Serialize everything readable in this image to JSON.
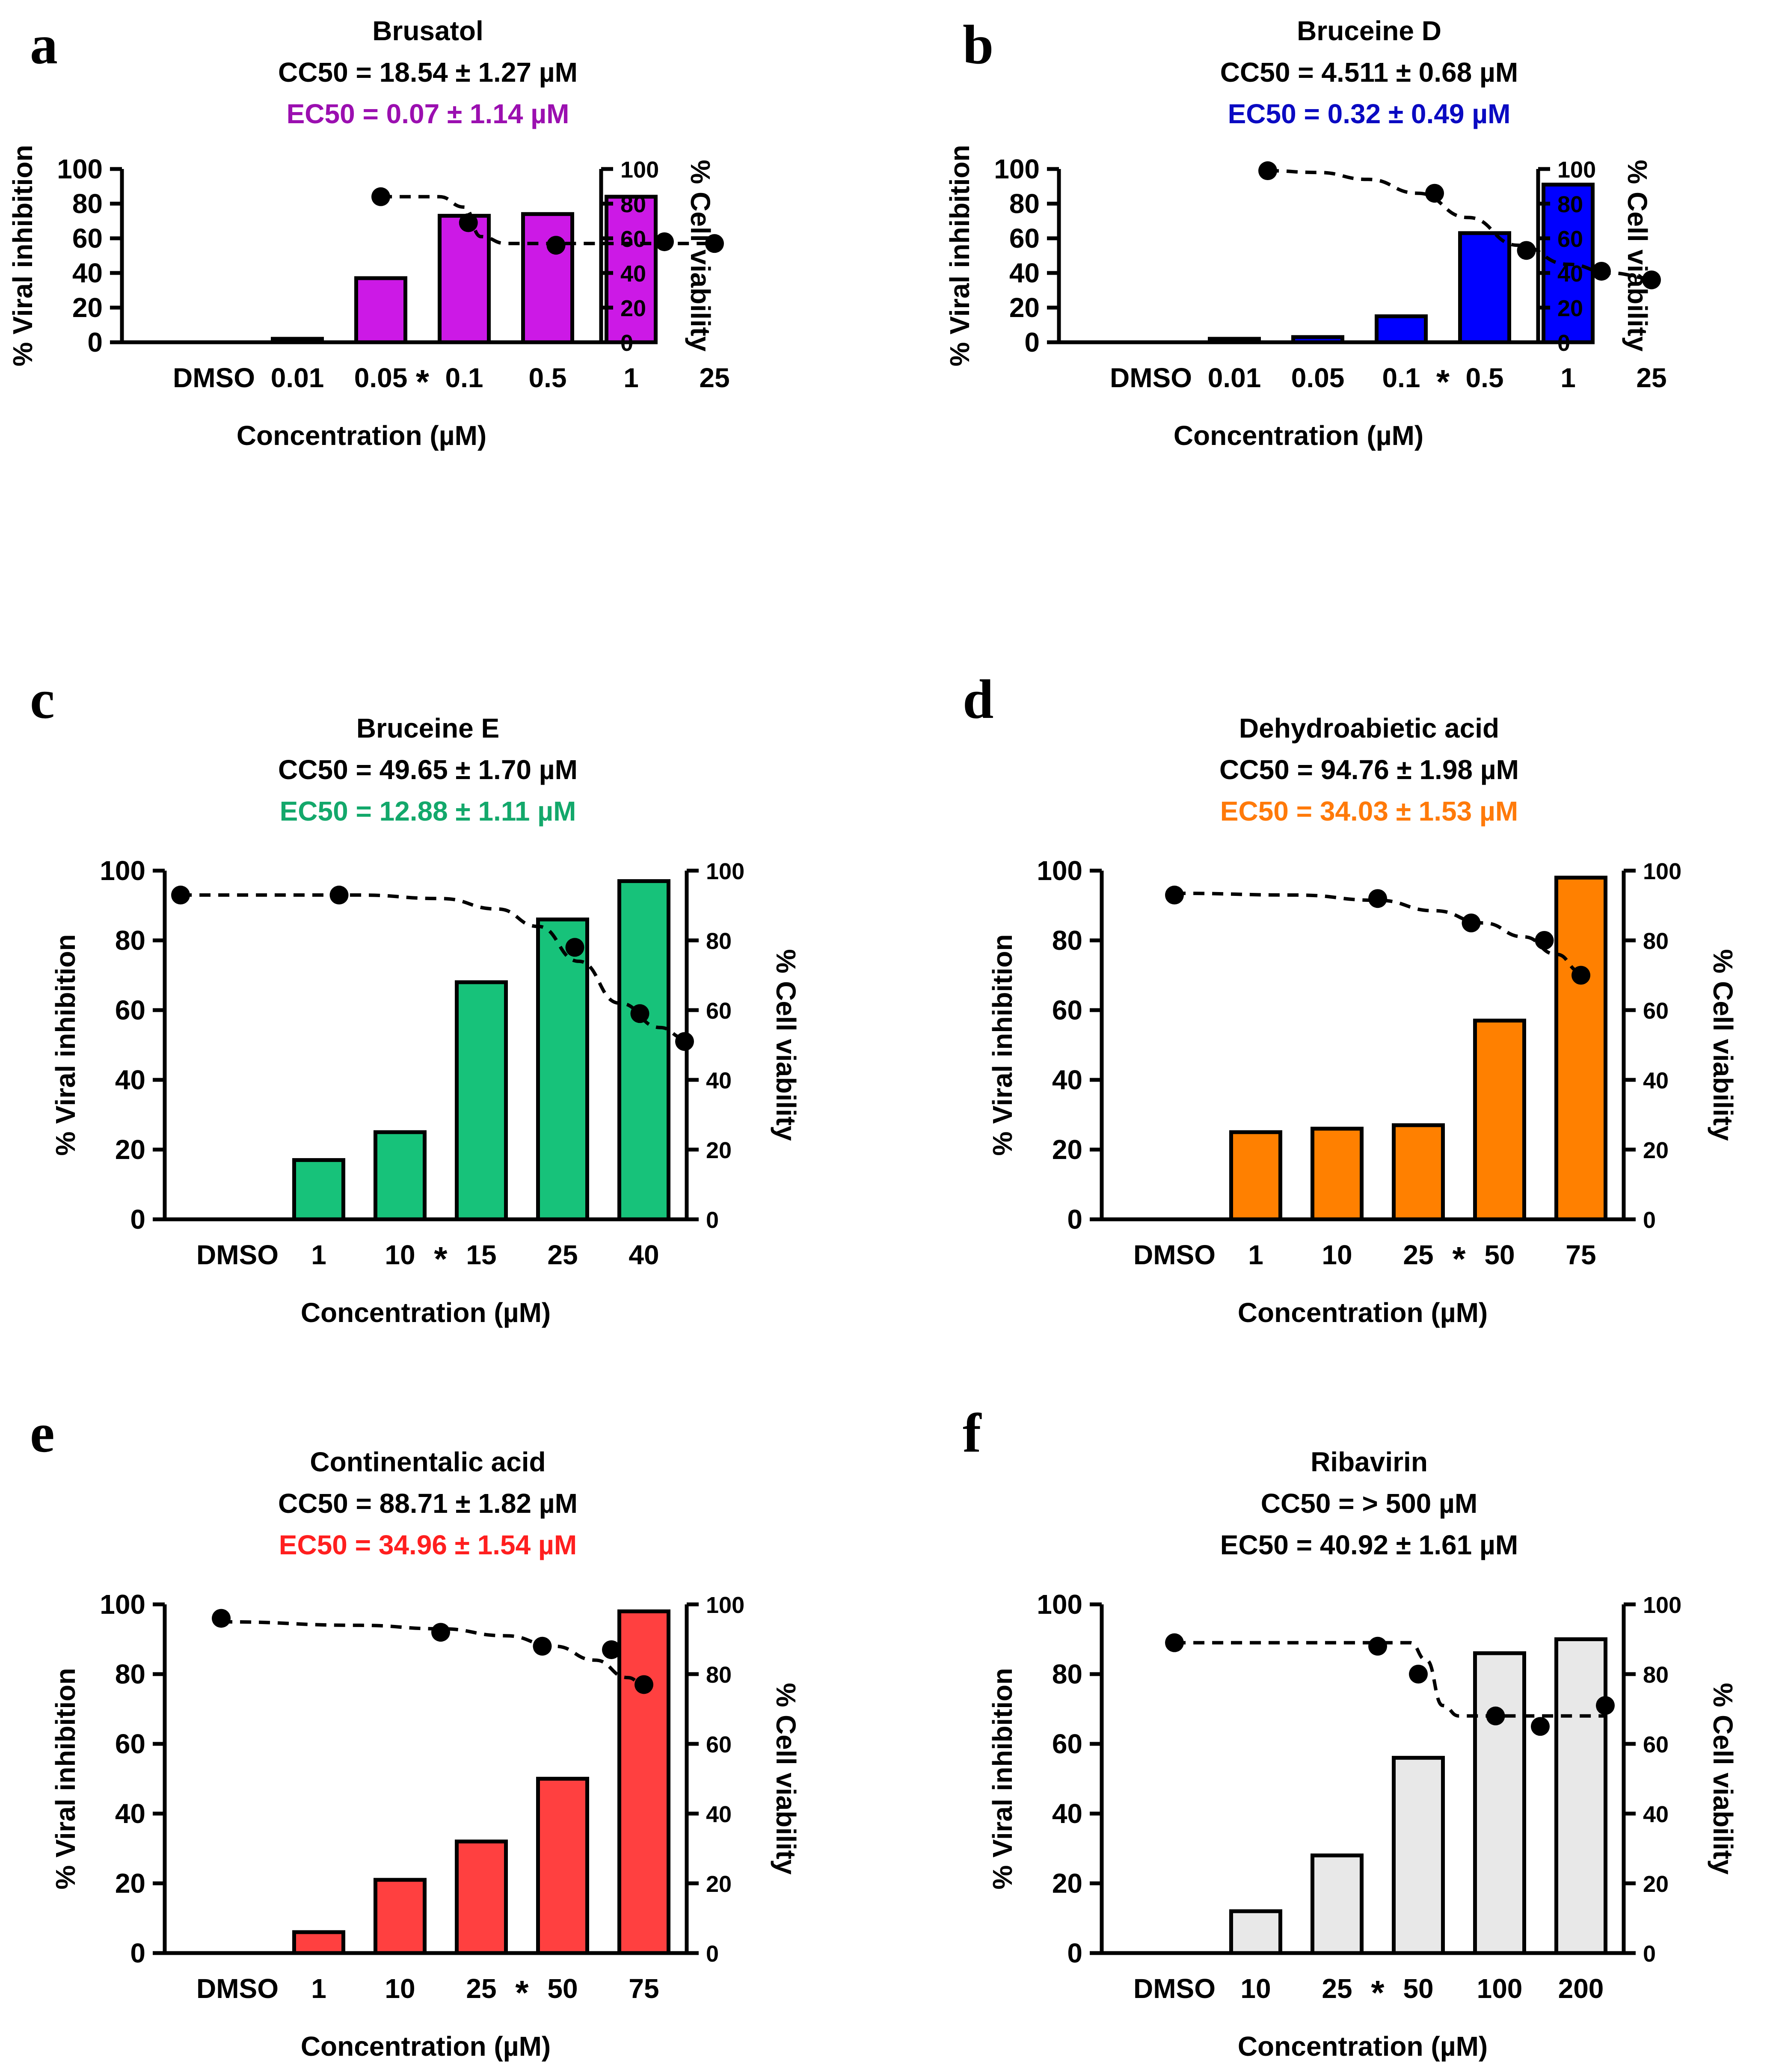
{
  "figure": {
    "background": "#ffffff"
  },
  "chart_data": [
    {
      "panel": "a",
      "type": "bar",
      "title": "Brusatol",
      "cc50": "CC50 = 18.54 ± 1.27 µM",
      "ec50": "EC50 = 0.07 ± 1.14 µM",
      "ec50_color": "#9b0fb0",
      "bar_color": "#cc19e6",
      "bar_edge": "#000000",
      "categories": [
        "DMSO",
        "0.01",
        "0.05",
        "0.1",
        "0.5",
        "1",
        "25"
      ],
      "values": [
        0,
        2,
        37,
        73,
        74,
        84,
        null
      ],
      "marker_after_index": 2,
      "ylabel": "% Viral inhibition",
      "y2label": "% Cell viability",
      "xlabel": "Concentration (µM)",
      "ylim": [
        0,
        100
      ],
      "yticks": [
        0,
        20,
        40,
        60,
        80,
        100
      ],
      "viability_points": [
        [
          2,
          84
        ],
        [
          3.05,
          69
        ],
        [
          4.1,
          56
        ],
        [
          5.4,
          58
        ],
        [
          6,
          57
        ]
      ],
      "fit_curve": [
        [
          2,
          84
        ],
        [
          2.7,
          84
        ],
        [
          3.0,
          78
        ],
        [
          3.2,
          61
        ],
        [
          3.5,
          57
        ],
        [
          6,
          57
        ]
      ]
    },
    {
      "panel": "b",
      "type": "bar",
      "title": "Bruceine D",
      "cc50": "CC50 = 4.511 ± 0.68 µM",
      "ec50": "EC50 = 0.32 ± 0.49 µM",
      "ec50_color": "#0a0ac2",
      "bar_color": "#0000ff",
      "bar_edge": "#000000",
      "categories": [
        "DMSO",
        "0.01",
        "0.05",
        "0.1",
        "0.5",
        "1",
        "25"
      ],
      "values": [
        0,
        2,
        3,
        15,
        63,
        91,
        null
      ],
      "marker_after_index": 3,
      "ylabel": "% Viral inhibition",
      "y2label": "% Cell viability",
      "xlabel": "Concentration (µM)",
      "ylim": [
        0,
        100
      ],
      "yticks": [
        0,
        20,
        40,
        60,
        80,
        100
      ],
      "viability_points": [
        [
          1.4,
          99
        ],
        [
          3.4,
          86
        ],
        [
          4.5,
          53
        ],
        [
          5.4,
          41
        ],
        [
          6,
          36
        ]
      ],
      "fit_curve": [
        [
          1.4,
          99
        ],
        [
          2.0,
          98
        ],
        [
          2.6,
          94
        ],
        [
          3.2,
          86
        ],
        [
          3.8,
          72
        ],
        [
          4.4,
          56
        ],
        [
          5.0,
          45
        ],
        [
          5.5,
          40
        ],
        [
          6,
          37
        ]
      ]
    },
    {
      "panel": "c",
      "type": "bar",
      "title": "Bruceine E",
      "cc50": "CC50 = 49.65 ± 1.70 µM",
      "ec50": "EC50 = 12.88 ± 1.11 µM",
      "ec50_color": "#13a86b",
      "bar_color": "#17c27a",
      "bar_edge": "#000000",
      "categories": [
        "DMSO",
        "1",
        "10",
        "15",
        "25",
        "40"
      ],
      "values": [
        0,
        17,
        25,
        68,
        86,
        97
      ],
      "marker_after_index": 2,
      "ylabel": "% Viral inhibition",
      "y2label": "% Cell viability",
      "xlabel": "Concentration (µM)",
      "ylim": [
        0,
        100
      ],
      "yticks": [
        0,
        20,
        40,
        60,
        80,
        100
      ],
      "viability_points": [
        [
          -0.7,
          93
        ],
        [
          1.25,
          93
        ],
        [
          4.15,
          78
        ],
        [
          4.95,
          59
        ],
        [
          5.5,
          51
        ]
      ],
      "fit_curve": [
        [
          -0.7,
          93
        ],
        [
          1.5,
          93
        ],
        [
          2.5,
          92
        ],
        [
          3.2,
          89
        ],
        [
          3.7,
          84
        ],
        [
          4.2,
          74
        ],
        [
          4.7,
          62
        ],
        [
          5.2,
          55
        ],
        [
          5.5,
          52
        ]
      ]
    },
    {
      "panel": "d",
      "type": "bar",
      "title": "Dehydroabietic acid",
      "cc50": "CC50 = 94.76 ± 1.98 µM",
      "ec50": "EC50 = 34.03 ± 1.53 µM",
      "ec50_color": "#ff7a0a",
      "bar_color": "#ff8000",
      "bar_edge": "#000000",
      "categories": [
        "DMSO",
        "1",
        "10",
        "25",
        "50",
        "75"
      ],
      "values": [
        0,
        25,
        26,
        27,
        57,
        98
      ],
      "marker_after_index": 3,
      "ylabel": "% Viral inhibition",
      "y2label": "% Cell viability",
      "xlabel": "Concentration (µM)",
      "ylim": [
        0,
        100
      ],
      "yticks": [
        0,
        20,
        40,
        60,
        80,
        100
      ],
      "viability_points": [
        [
          0,
          93
        ],
        [
          2.5,
          92
        ],
        [
          3.65,
          85
        ],
        [
          4.55,
          80
        ],
        [
          5,
          70
        ]
      ],
      "fit_curve": [
        [
          0,
          93.5
        ],
        [
          1.5,
          93
        ],
        [
          2.5,
          91.5
        ],
        [
          3.2,
          88.5
        ],
        [
          3.8,
          85
        ],
        [
          4.3,
          81
        ],
        [
          4.7,
          76
        ],
        [
          5,
          71
        ]
      ]
    },
    {
      "panel": "e",
      "type": "bar",
      "title": "Continentalic acid",
      "cc50": "CC50 = 88.71 ± 1.82 µM",
      "ec50": "EC50 = 34.96 ± 1.54 µM",
      "ec50_color": "#ff1f1f",
      "bar_color": "#ff4040",
      "bar_edge": "#000000",
      "categories": [
        "DMSO",
        "1",
        "10",
        "25",
        "50",
        "75"
      ],
      "values": [
        0,
        6,
        21,
        32,
        50,
        98
      ],
      "marker_after_index": 3,
      "ylabel": "% Viral inhibition",
      "y2label": "% Cell viability",
      "xlabel": "Concentration (µM)",
      "ylim": [
        0,
        100
      ],
      "yticks": [
        0,
        20,
        40,
        60,
        80,
        100
      ],
      "viability_points": [
        [
          -0.2,
          96
        ],
        [
          2.5,
          92
        ],
        [
          3.75,
          88
        ],
        [
          4.6,
          87
        ],
        [
          5,
          77
        ]
      ],
      "fit_curve": [
        [
          -0.2,
          95
        ],
        [
          1.5,
          94
        ],
        [
          2.5,
          93
        ],
        [
          3.3,
          91
        ],
        [
          3.9,
          88
        ],
        [
          4.4,
          84
        ],
        [
          4.8,
          79
        ],
        [
          5,
          77
        ]
      ]
    },
    {
      "panel": "f",
      "type": "bar",
      "title": "Ribavirin",
      "cc50": "CC50 = > 500 µM",
      "ec50": "EC50 = 40.92 ± 1.61 µM",
      "ec50_color": "#000000",
      "bar_color": "#e8e8e8",
      "bar_edge": "#000000",
      "categories": [
        "DMSO",
        "10",
        "25",
        "50",
        "100",
        "200"
      ],
      "values": [
        0,
        12,
        28,
        56,
        86,
        90
      ],
      "marker_after_index": 2,
      "ylabel": "% Viral inhibition",
      "y2label": "% Cell viability",
      "xlabel": "Concentration (µM)",
      "ylim": [
        0,
        100
      ],
      "yticks": [
        0,
        20,
        40,
        60,
        80,
        100
      ],
      "viability_points": [
        [
          0,
          89
        ],
        [
          2.5,
          88
        ],
        [
          3,
          80
        ],
        [
          3.95,
          68
        ],
        [
          4.5,
          65
        ],
        [
          5.3,
          71
        ]
      ],
      "fit_curve": [
        [
          0,
          89
        ],
        [
          2.9,
          89
        ],
        [
          3.1,
          84
        ],
        [
          3.3,
          71
        ],
        [
          3.5,
          68
        ],
        [
          5.3,
          68
        ]
      ]
    }
  ]
}
